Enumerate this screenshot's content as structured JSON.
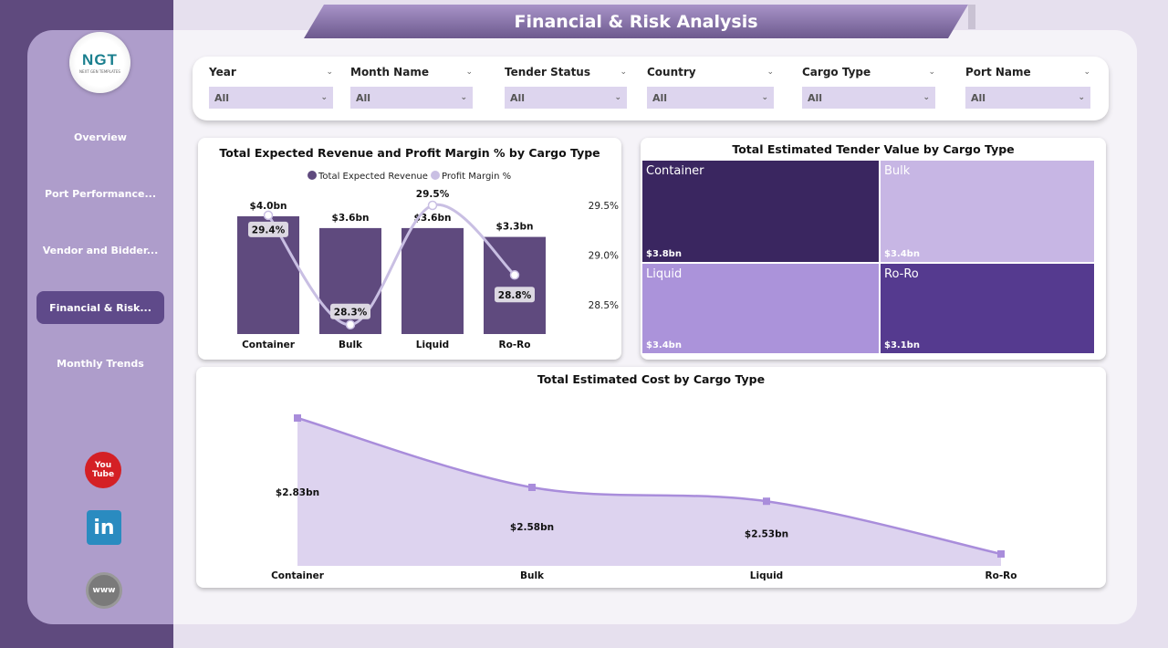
{
  "title": "Financial & Risk Analysis",
  "logo": {
    "text": "NGT",
    "subtext": "NEXT GEN TEMPLATES"
  },
  "nav": [
    {
      "label": "Overview"
    },
    {
      "label": "Port Performance..."
    },
    {
      "label": "Vendor and Bidder..."
    },
    {
      "label": "Financial & Risk...",
      "active": true
    },
    {
      "label": "Monthly Trends"
    }
  ],
  "social": [
    {
      "icon": "youtube-icon",
      "label": "You Tube"
    },
    {
      "icon": "linkedin-icon",
      "label": "in"
    },
    {
      "icon": "globe-www-icon",
      "label": "www"
    }
  ],
  "filters": [
    {
      "label": "Year",
      "value": "All"
    },
    {
      "label": "Month Name",
      "value": "All"
    },
    {
      "label": "Tender Status",
      "value": "All"
    },
    {
      "label": "Country",
      "value": "All"
    },
    {
      "label": "Cargo Type",
      "value": "All"
    },
    {
      "label": "Port Name",
      "value": "All"
    }
  ],
  "colors": {
    "bar": "#5f4a7e",
    "line": "#c9bfe3",
    "area": "#ddd3ef",
    "area_line": "#a98ddb",
    "sidebar": "#ae9dcb"
  },
  "chart_data": [
    {
      "type": "bar+line",
      "title": "Total Expected Revenue and Profit Margin % by Cargo Type",
      "legend": [
        "Total Expected Revenue",
        "Profit Margin %"
      ],
      "legend_position": "top-center",
      "categories": [
        "Container",
        "Bulk",
        "Liquid",
        "Ro-Ro"
      ],
      "series": [
        {
          "name": "Total Expected Revenue",
          "type": "bar",
          "values": [
            4.0,
            3.6,
            3.6,
            3.3
          ],
          "labels": [
            "$4.0bn",
            "$3.6bn",
            "$3.6bn",
            "$3.3bn"
          ]
        },
        {
          "name": "Profit Margin %",
          "type": "line",
          "values": [
            29.4,
            28.3,
            29.5,
            28.8
          ],
          "labels": [
            "29.4%",
            "28.3%",
            "29.5%",
            "28.8%"
          ]
        }
      ],
      "y2_ticks": [
        "29.5%",
        "29.0%",
        "28.5%"
      ],
      "y2_range": [
        28.2,
        29.6
      ]
    },
    {
      "type": "treemap",
      "title": "Total Estimated Tender Value by Cargo Type",
      "categories": [
        "Container",
        "Bulk",
        "Liquid",
        "Ro-Ro"
      ],
      "values": [
        3.8,
        3.4,
        3.4,
        3.1
      ],
      "labels": [
        "$3.8bn",
        "$3.4bn",
        "$3.4bn",
        "$3.1bn"
      ],
      "colors": [
        "#3a2660",
        "#c7b6e4",
        "#ab93da",
        "#553a8f"
      ]
    },
    {
      "type": "area",
      "title": "Total Estimated Cost by Cargo Type",
      "categories": [
        "Container",
        "Bulk",
        "Liquid",
        "Ro-Ro"
      ],
      "values": [
        2.83,
        2.58,
        2.53,
        2.34
      ],
      "labels": [
        "$2.83bn",
        "$2.58bn",
        "$2.53bn",
        ""
      ]
    }
  ]
}
